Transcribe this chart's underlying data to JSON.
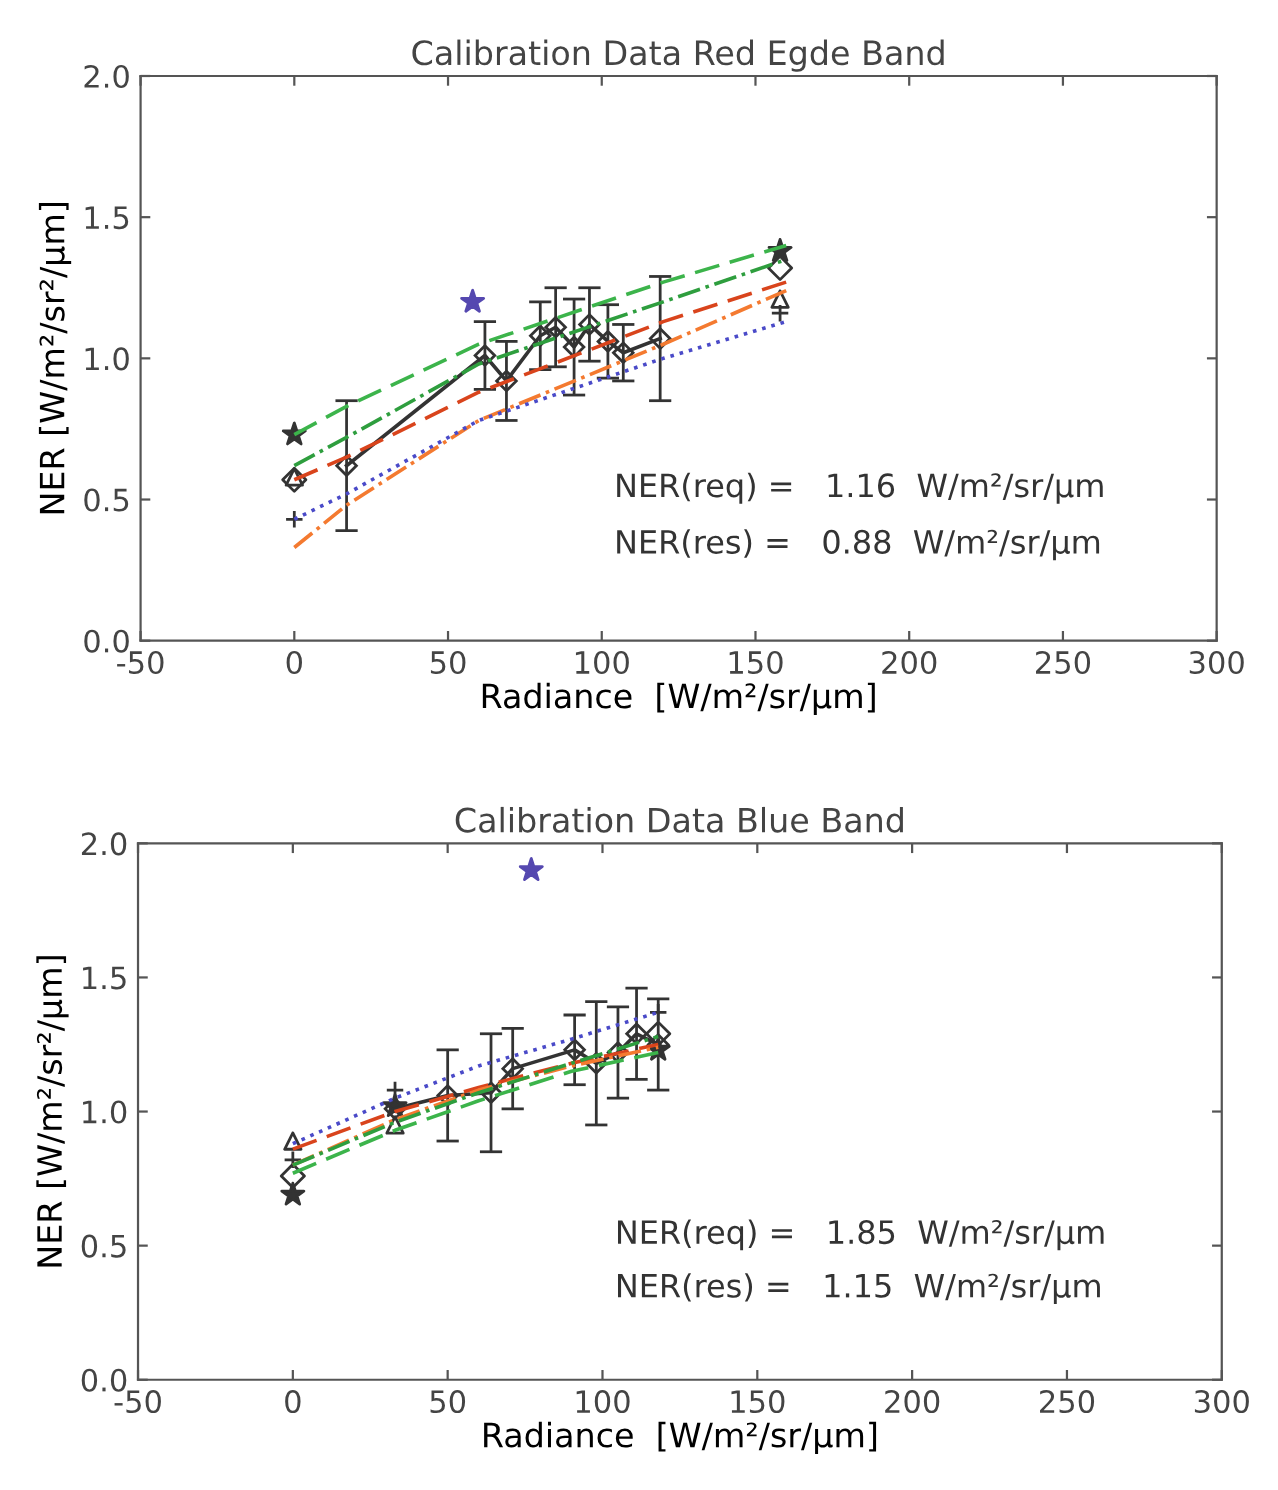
{
  "chart_data": [
    {
      "type": "line",
      "title": "Calibration Data Red Egde Band",
      "xlabel": "Radiance  [W/m²/sr/µm]",
      "ylabel": "NER [W/m²/sr²/µm]",
      "xlim": [
        -50,
        300
      ],
      "xticks": [
        -50,
        0,
        50,
        100,
        150,
        200,
        250,
        300
      ],
      "ylim": [
        0,
        2
      ],
      "yticks": [
        {
          "value": 0,
          "label": "0.0"
        },
        {
          "value": 0.5,
          "label": "0.5"
        },
        {
          "value": 1,
          "label": "1.0"
        },
        {
          "value": 1.5,
          "label": "1.5"
        },
        {
          "value": 2,
          "label": "2.0"
        }
      ],
      "grid": false,
      "legend": false,
      "annotations": [
        "NER(req) =   1.16  W/m²/sr/µm",
        "NER(res) =   0.88  W/m²/sr/µm"
      ],
      "series": [
        {
          "color": "#333333",
          "line_style": "solid",
          "marker": "diamond",
          "x": [
            17,
            62,
            69,
            80,
            85,
            91,
            96,
            102,
            107,
            119
          ],
          "values": [
            0.62,
            1.01,
            0.92,
            1.08,
            1.11,
            1.04,
            1.12,
            1.06,
            1.02,
            1.07
          ],
          "errors": [
            0.23,
            0.12,
            0.14,
            0.12,
            0.14,
            0.17,
            0.13,
            0.13,
            0.1,
            0.22
          ]
        },
        {
          "type": "line",
          "color": "#3cb44b",
          "line_style": "dashed",
          "marker": "none",
          "x": [
            0,
            17,
            60,
            120,
            160
          ],
          "values": [
            0.73,
            0.83,
            1.05,
            1.27,
            1.4
          ]
        },
        {
          "type": "line",
          "color": "#2e9e3e",
          "line_style": "dashdot",
          "marker": "none",
          "x": [
            0,
            17,
            60,
            120,
            160
          ],
          "values": [
            0.62,
            0.72,
            0.98,
            1.2,
            1.35
          ]
        },
        {
          "type": "line",
          "color": "#d9441c",
          "line_style": "dashed",
          "marker": "none",
          "x": [
            0,
            17,
            60,
            120,
            160
          ],
          "values": [
            0.57,
            0.65,
            0.88,
            1.13,
            1.27
          ]
        },
        {
          "type": "line",
          "color": "#f47a30",
          "line_style": "dashdot",
          "marker": "none",
          "x": [
            0,
            17,
            60,
            120,
            160
          ],
          "values": [
            0.33,
            0.48,
            0.78,
            1.05,
            1.24
          ]
        },
        {
          "type": "line",
          "color": "#4a4ac8",
          "line_style": "dotted",
          "marker": "none",
          "x": [
            0,
            17,
            60,
            120,
            160
          ],
          "values": [
            0.43,
            0.52,
            0.78,
            1.0,
            1.13
          ]
        },
        {
          "type": "scatter",
          "color": "#333333",
          "marker": "star",
          "x": [
            0,
            158
          ],
          "values": [
            0.73,
            1.38
          ]
        },
        {
          "type": "scatter",
          "color": "#333333",
          "marker": "diamond",
          "x": [
            0,
            158
          ],
          "values": [
            0.57,
            1.32
          ]
        },
        {
          "type": "scatter",
          "color": "#333333",
          "marker": "triangle",
          "x": [
            0,
            158
          ],
          "values": [
            0.58,
            1.21
          ]
        },
        {
          "type": "scatter",
          "color": "#333333",
          "marker": "cross",
          "x": [
            0,
            158
          ],
          "values": [
            0.43,
            1.16
          ]
        },
        {
          "type": "scatter",
          "color": "#5548b0",
          "marker": "star",
          "x": [
            58
          ],
          "values": [
            1.2
          ]
        }
      ]
    },
    {
      "type": "line",
      "title": "Calibration Data Blue Band",
      "xlabel": "Radiance  [W/m²/sr/µm]",
      "ylabel": "NER [W/m²/sr²/µm]",
      "xlim": [
        -50,
        300
      ],
      "xticks": [
        -50,
        0,
        50,
        100,
        150,
        200,
        250,
        300
      ],
      "ylim": [
        0,
        2
      ],
      "yticks": [
        {
          "value": 0,
          "label": "0.0"
        },
        {
          "value": 0.5,
          "label": "0.5"
        },
        {
          "value": 1,
          "label": "1.0"
        },
        {
          "value": 1.5,
          "label": "1.5"
        },
        {
          "value": 2,
          "label": "2.0"
        }
      ],
      "grid": false,
      "legend": false,
      "annotations": [
        "NER(req) =   1.85  W/m²/sr/µm",
        "NER(res) =   1.15  W/m²/sr/µm"
      ],
      "series": [
        {
          "color": "#333333",
          "line_style": "solid",
          "marker": "diamond",
          "x": [
            33,
            50,
            64,
            71,
            91,
            98,
            105,
            111,
            118
          ],
          "values": [
            1.01,
            1.06,
            1.07,
            1.16,
            1.23,
            1.18,
            1.22,
            1.29,
            1.25
          ],
          "errors": [
            null,
            0.17,
            0.22,
            0.15,
            0.13,
            0.23,
            0.17,
            0.17,
            0.17
          ]
        },
        {
          "type": "line",
          "color": "#4a4ac8",
          "line_style": "dotted",
          "marker": "none",
          "x": [
            0,
            33,
            60,
            90,
            118
          ],
          "values": [
            0.88,
            1.05,
            1.17,
            1.27,
            1.37
          ]
        },
        {
          "type": "line",
          "color": "#d9441c",
          "line_style": "dashed",
          "marker": "none",
          "x": [
            0,
            33,
            60,
            90,
            118
          ],
          "values": [
            0.86,
            1.0,
            1.09,
            1.18,
            1.25
          ]
        },
        {
          "type": "line",
          "color": "#f47a30",
          "line_style": "dashdot",
          "marker": "none",
          "x": [
            0,
            33,
            60,
            90,
            118
          ],
          "values": [
            0.8,
            0.97,
            1.08,
            1.17,
            1.24
          ]
        },
        {
          "type": "line",
          "color": "#2e9e3e",
          "line_style": "dashdot",
          "marker": "none",
          "x": [
            0,
            33,
            60,
            90,
            118
          ],
          "values": [
            0.8,
            0.96,
            1.07,
            1.18,
            1.28
          ]
        },
        {
          "type": "line",
          "color": "#3cb44b",
          "line_style": "dashed",
          "marker": "none",
          "x": [
            0,
            33,
            60,
            90,
            118
          ],
          "values": [
            0.77,
            0.93,
            1.04,
            1.15,
            1.22
          ]
        },
        {
          "type": "scatter",
          "color": "#333333",
          "marker": "triangle",
          "x": [
            0,
            33
          ],
          "values": [
            0.89,
            0.95
          ]
        },
        {
          "type": "scatter",
          "color": "#333333",
          "marker": "cross",
          "x": [
            0,
            33,
            118
          ],
          "values": [
            0.82,
            1.08,
            1.37
          ]
        },
        {
          "type": "scatter",
          "color": "#333333",
          "marker": "diamond",
          "x": [
            0,
            118
          ],
          "values": [
            0.76,
            1.29
          ]
        },
        {
          "type": "scatter",
          "color": "#333333",
          "marker": "star",
          "x": [
            0,
            33,
            118
          ],
          "values": [
            0.69,
            1.02,
            1.23
          ]
        },
        {
          "type": "scatter",
          "color": "#5548b0",
          "marker": "star",
          "x": [
            77
          ],
          "values": [
            1.9
          ]
        }
      ]
    }
  ]
}
